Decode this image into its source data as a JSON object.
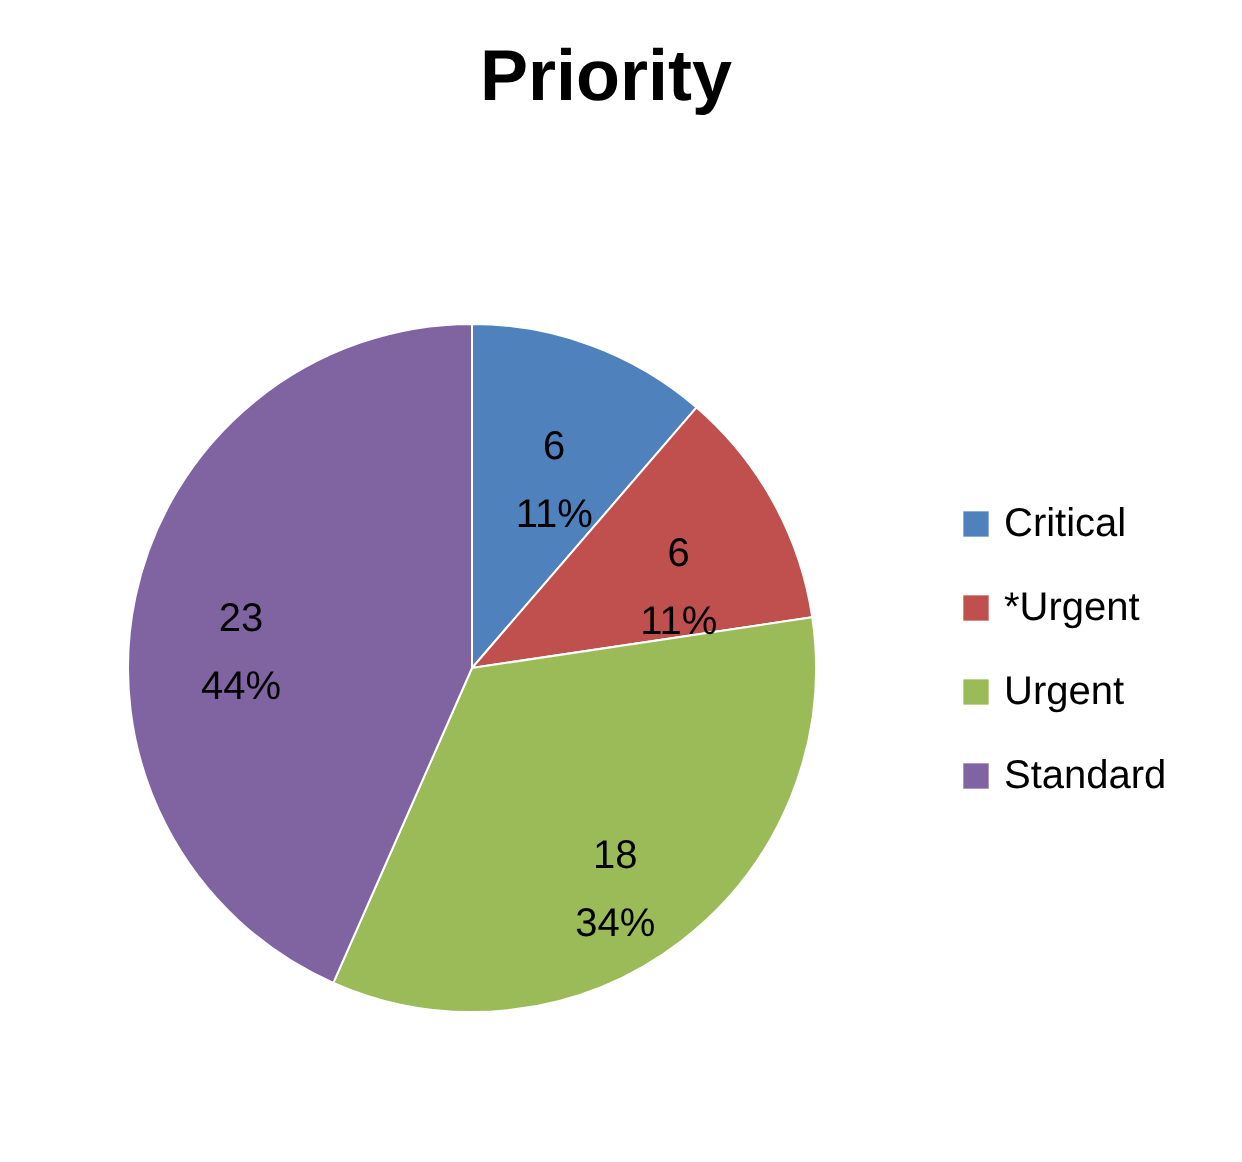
{
  "chart_data": {
    "type": "pie",
    "title": "Priority",
    "categories": [
      "Critical",
      "*Urgent",
      "Urgent",
      "Standard"
    ],
    "values": [
      6,
      6,
      18,
      23
    ],
    "colors": [
      "#4f81bd",
      "#c0504d",
      "#9bbb59",
      "#8064a2"
    ],
    "value_labels": [
      "6\n11%",
      "6\n11%",
      "18\n34%",
      "23\n44%"
    ],
    "legend": "right"
  }
}
